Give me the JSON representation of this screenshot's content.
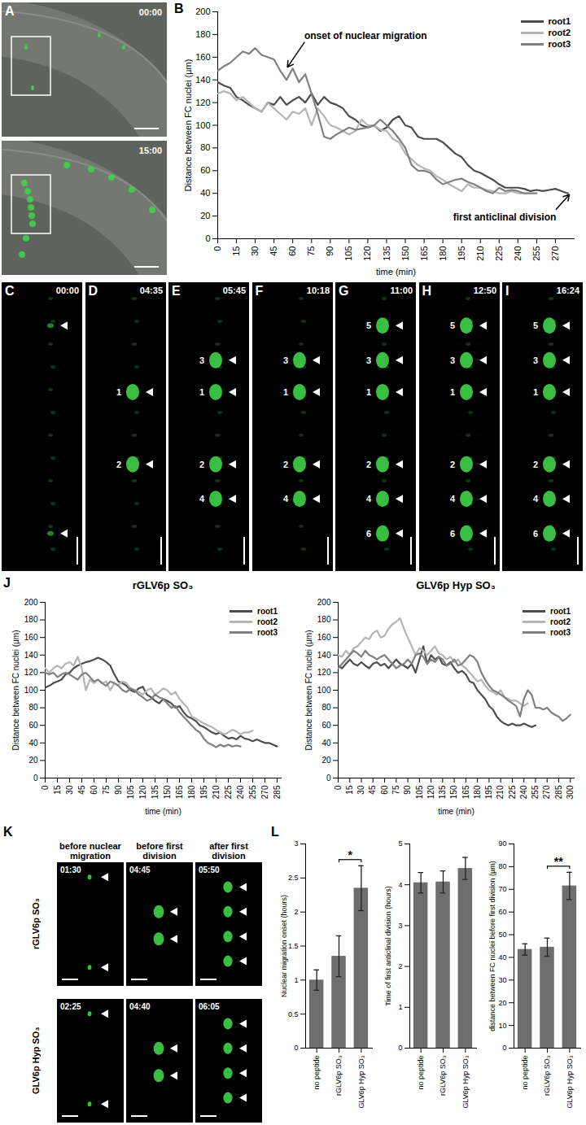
{
  "panel_letters": [
    "A",
    "B",
    "C",
    "D",
    "E",
    "F",
    "G",
    "H",
    "I",
    "J",
    "K",
    "L"
  ],
  "images": {
    "A": [
      "00:00",
      "15:00"
    ],
    "time_series": [
      {
        "time": "00:00",
        "nuclei": []
      },
      {
        "time": "04:35",
        "nuclei": [
          "1",
          "2"
        ]
      },
      {
        "time": "05:45",
        "nuclei": [
          "3",
          "1",
          "2",
          "4"
        ]
      },
      {
        "time": "10:18",
        "nuclei": [
          "3",
          "1",
          "2",
          "4"
        ]
      },
      {
        "time": "11:00",
        "nuclei": [
          "5",
          "3",
          "1",
          "2",
          "4",
          "6"
        ]
      },
      {
        "time": "12:50",
        "nuclei": [
          "5",
          "3",
          "1",
          "2",
          "4",
          "6"
        ]
      },
      {
        "time": "16:24",
        "nuclei": [
          "5",
          "3",
          "1",
          "2",
          "4",
          "6"
        ]
      }
    ],
    "K": {
      "columns": [
        "before nuclear migration",
        "before first division",
        "after first division"
      ],
      "rows": [
        {
          "label": "rGLV6p SO₃",
          "times": [
            "01:30",
            "04:45",
            "05:50"
          ]
        },
        {
          "label": "GLV6p Hyp SO₃",
          "times": [
            "02:25",
            "04:40",
            "06:05"
          ]
        }
      ]
    }
  },
  "chart_data": [
    {
      "type": "line",
      "x_label": "time (min)",
      "y_label": "Distance between FC nuclei (µm)",
      "x": [
        0,
        5,
        10,
        15,
        20,
        25,
        30,
        35,
        40,
        45,
        50,
        55,
        60,
        65,
        70,
        75,
        80,
        85,
        90,
        95,
        100,
        105,
        110,
        115,
        120,
        125,
        130,
        135,
        140,
        145,
        150,
        155,
        160,
        165,
        170,
        175,
        180,
        185,
        190,
        195,
        200,
        205,
        210,
        215,
        220,
        225,
        230,
        235,
        240,
        245,
        250,
        255,
        260,
        265,
        270,
        275,
        280
      ],
      "series": [
        {
          "name": "root1",
          "color": "#4d4d4d",
          "values": [
            138,
            135,
            133,
            125,
            122,
            118,
            115,
            112,
            120,
            118,
            125,
            118,
            122,
            125,
            120,
            128,
            118,
            125,
            120,
            118,
            115,
            108,
            105,
            100,
            98,
            100,
            95,
            98,
            105,
            108,
            100,
            98,
            90,
            88,
            88,
            88,
            85,
            80,
            75,
            72,
            65,
            60,
            58,
            55,
            52,
            48,
            45,
            45,
            45,
            44,
            42,
            43,
            42,
            43,
            44,
            42,
            40
          ]
        },
        {
          "name": "root2",
          "color": "#b5b5b5",
          "values": [
            128,
            130,
            128,
            122,
            125,
            120,
            115,
            112,
            120,
            115,
            110,
            105,
            112,
            110,
            115,
            100,
            115,
            108,
            100,
            98,
            95,
            92,
            95,
            105,
            100,
            100,
            96,
            95,
            88,
            85,
            75,
            70,
            65,
            62,
            60,
            55,
            52,
            48,
            45,
            42,
            48,
            45,
            45,
            43,
            42,
            40,
            40,
            42,
            40,
            40,
            null,
            null,
            null,
            null,
            null,
            null,
            null
          ]
        },
        {
          "name": "root3",
          "color": "#808080",
          "values": [
            148,
            152,
            155,
            160,
            165,
            163,
            168,
            162,
            160,
            158,
            148,
            140,
            150,
            138,
            145,
            128,
            110,
            90,
            88,
            92,
            95,
            98,
            96,
            97,
            98,
            100,
            105,
            100,
            95,
            88,
            80,
            65,
            60,
            60,
            58,
            52,
            48,
            50,
            52,
            53,
            50,
            48,
            45,
            42,
            40,
            45,
            42,
            43,
            42,
            40,
            40,
            40,
            null,
            null,
            null,
            null,
            null
          ]
        }
      ],
      "xlim": [
        0,
        285
      ],
      "ylim": [
        0,
        200
      ],
      "xticks": [
        0,
        15,
        30,
        45,
        60,
        75,
        90,
        105,
        120,
        135,
        150,
        165,
        180,
        195,
        210,
        225,
        240,
        255,
        270
      ],
      "yticks": [
        0,
        20,
        40,
        60,
        80,
        100,
        120,
        140,
        160,
        180,
        200
      ],
      "legend": "top-right",
      "grid": false,
      "annotations": [
        {
          "text": "onset of nuclear migration",
          "x": 55,
          "y": 150
        },
        {
          "text": "first anticlinal division",
          "x": 282,
          "y": 40
        }
      ]
    },
    {
      "type": "line",
      "title": "rGLV6p SO₃",
      "x_label": "time (min)",
      "y_label": "Distance between FC nuclei (µm)",
      "x": [
        0,
        5,
        10,
        15,
        20,
        25,
        30,
        35,
        40,
        45,
        50,
        55,
        60,
        65,
        70,
        75,
        80,
        85,
        90,
        95,
        100,
        105,
        110,
        115,
        120,
        125,
        130,
        135,
        140,
        145,
        150,
        155,
        160,
        165,
        170,
        175,
        180,
        185,
        190,
        195,
        200,
        205,
        210,
        215,
        220,
        225,
        230,
        235,
        240,
        245,
        250,
        255,
        260,
        265,
        270,
        275,
        280,
        285
      ],
      "series": [
        {
          "name": "root1",
          "color": "#4d4d4d",
          "values": [
            103,
            105,
            108,
            110,
            112,
            118,
            120,
            125,
            128,
            130,
            132,
            133,
            135,
            137,
            135,
            132,
            128,
            118,
            110,
            108,
            105,
            100,
            98,
            102,
            104,
            95,
            92,
            88,
            85,
            90,
            88,
            85,
            80,
            82,
            75,
            70,
            68,
            65,
            60,
            58,
            55,
            52,
            50,
            52,
            48,
            45,
            46,
            44,
            48,
            45,
            44,
            42,
            44,
            42,
            40,
            40,
            38,
            36
          ]
        },
        {
          "name": "root2",
          "color": "#b5b5b5",
          "values": [
            125,
            120,
            125,
            128,
            125,
            130,
            132,
            128,
            138,
            125,
            100,
            112,
            108,
            112,
            108,
            110,
            100,
            108,
            106,
            110,
            108,
            102,
            100,
            98,
            95,
            100,
            102,
            95,
            98,
            102,
            100,
            95,
            98,
            90,
            85,
            80,
            70,
            68,
            65,
            62,
            60,
            58,
            55,
            52,
            50,
            52,
            55,
            53,
            50,
            52,
            52,
            54,
            null,
            null,
            null,
            null,
            null,
            null
          ]
        },
        {
          "name": "root3",
          "color": "#808080",
          "values": [
            120,
            118,
            120,
            115,
            118,
            120,
            118,
            115,
            112,
            118,
            120,
            115,
            110,
            112,
            108,
            105,
            110,
            108,
            105,
            100,
            98,
            102,
            100,
            95,
            92,
            88,
            90,
            95,
            92,
            90,
            85,
            80,
            82,
            75,
            70,
            65,
            60,
            55,
            52,
            45,
            40,
            38,
            35,
            38,
            36,
            38,
            36,
            37,
            36,
            null,
            null,
            null,
            null,
            null,
            null,
            null,
            null,
            null
          ]
        }
      ],
      "xlim": [
        0,
        290
      ],
      "ylim": [
        0,
        200
      ],
      "xticks": [
        0,
        15,
        30,
        45,
        60,
        75,
        90,
        105,
        120,
        135,
        150,
        165,
        180,
        195,
        210,
        225,
        240,
        255,
        270,
        285
      ],
      "yticks": [
        0,
        20,
        40,
        60,
        80,
        100,
        120,
        140,
        160,
        180,
        200
      ],
      "legend": "top-right",
      "grid": false
    },
    {
      "type": "line",
      "title": "GLV6p Hyp SO₃",
      "x_label": "time (min)",
      "y_label": "Distance between FC nuclei (µm)",
      "x": [
        0,
        5,
        10,
        15,
        20,
        25,
        30,
        35,
        40,
        45,
        50,
        55,
        60,
        65,
        70,
        75,
        80,
        85,
        90,
        95,
        100,
        105,
        110,
        115,
        120,
        125,
        130,
        135,
        140,
        145,
        150,
        155,
        160,
        165,
        170,
        175,
        180,
        185,
        190,
        195,
        200,
        205,
        210,
        215,
        220,
        225,
        230,
        235,
        240,
        245,
        250,
        255,
        260,
        265,
        270,
        275,
        280,
        285,
        290,
        295,
        300
      ],
      "series": [
        {
          "name": "root1",
          "color": "#4d4d4d",
          "values": [
            128,
            125,
            130,
            135,
            130,
            128,
            132,
            128,
            125,
            130,
            132,
            128,
            130,
            125,
            130,
            135,
            130,
            128,
            125,
            130,
            120,
            135,
            150,
            130,
            140,
            135,
            138,
            130,
            128,
            132,
            125,
            120,
            122,
            118,
            110,
            108,
            100,
            95,
            90,
            82,
            78,
            70,
            65,
            62,
            60,
            62,
            60,
            60,
            62,
            60,
            58,
            60,
            null,
            null,
            null,
            null,
            null,
            null,
            null,
            null,
            null
          ]
        },
        {
          "name": "root2",
          "color": "#b5b5b5",
          "values": [
            140,
            138,
            145,
            140,
            148,
            150,
            155,
            160,
            158,
            165,
            168,
            160,
            162,
            170,
            175,
            178,
            182,
            170,
            160,
            150,
            140,
            148,
            145,
            140,
            145,
            150,
            142,
            140,
            135,
            138,
            132,
            135,
            128,
            125,
            120,
            115,
            110,
            112,
            105,
            100,
            98,
            95,
            100,
            92,
            90,
            88,
            88,
            85,
            82,
            85,
            null,
            null,
            null,
            null,
            null,
            null,
            null,
            null,
            null,
            null,
            null
          ]
        },
        {
          "name": "root3",
          "color": "#808080",
          "values": [
            125,
            130,
            135,
            140,
            145,
            142,
            138,
            145,
            140,
            138,
            135,
            138,
            140,
            135,
            130,
            125,
            128,
            130,
            135,
            130,
            140,
            142,
            138,
            130,
            135,
            132,
            138,
            135,
            128,
            130,
            135,
            128,
            130,
            135,
            140,
            138,
            132,
            120,
            112,
            105,
            100,
            98,
            95,
            92,
            88,
            85,
            82,
            70,
            90,
            100,
            95,
            80,
            80,
            78,
            80,
            75,
            72,
            70,
            65,
            68,
            72
          ]
        }
      ],
      "xlim": [
        0,
        305
      ],
      "ylim": [
        0,
        200
      ],
      "xticks": [
        0,
        15,
        30,
        45,
        60,
        75,
        90,
        105,
        120,
        135,
        150,
        165,
        180,
        195,
        210,
        225,
        240,
        255,
        270,
        285,
        300
      ],
      "yticks": [
        0,
        20,
        40,
        60,
        80,
        100,
        120,
        140,
        160,
        180,
        200
      ],
      "legend": "top-right",
      "grid": false
    },
    {
      "type": "bar",
      "y_label": "Nuclear migration onset (hours)",
      "categories": [
        "no peptide",
        "rGLV6p SO₃",
        "GLV6p Hyp SO₃"
      ],
      "values": [
        1.0,
        1.35,
        2.35
      ],
      "errors": [
        0.15,
        0.3,
        0.33
      ],
      "color": "#6e6e6e",
      "ylim": [
        0,
        3
      ],
      "yticks": [
        0,
        0.5,
        1,
        1.5,
        2,
        2.5,
        3
      ],
      "grid": false,
      "significance": [
        {
          "between": [
            1,
            2
          ],
          "label": "*"
        }
      ]
    },
    {
      "type": "bar",
      "y_label": "Time of first anticlinal division (hours)",
      "categories": [
        "no peptide",
        "rGLV6p SO₃",
        "GLV6p Hyp SO₃"
      ],
      "values": [
        4.05,
        4.07,
        4.4
      ],
      "errors": [
        0.25,
        0.27,
        0.27
      ],
      "color": "#6e6e6e",
      "ylim": [
        0,
        5
      ],
      "yticks": [
        0,
        1,
        2,
        3,
        4,
        5
      ],
      "grid": false
    },
    {
      "type": "bar",
      "y_label": "distance between FC nuclei before first division (µm)",
      "categories": [
        "no peptide",
        "rGLV6p SO₃",
        "GLV6p Hyp SO₃"
      ],
      "values": [
        43.5,
        44.5,
        71.5
      ],
      "errors": [
        2.5,
        4,
        6
      ],
      "color": "#6e6e6e",
      "ylim": [
        0,
        90
      ],
      "yticks": [
        0,
        10,
        20,
        30,
        40,
        50,
        60,
        70,
        80,
        90
      ],
      "grid": false,
      "significance": [
        {
          "between": [
            1,
            2
          ],
          "label": "**"
        }
      ]
    }
  ]
}
